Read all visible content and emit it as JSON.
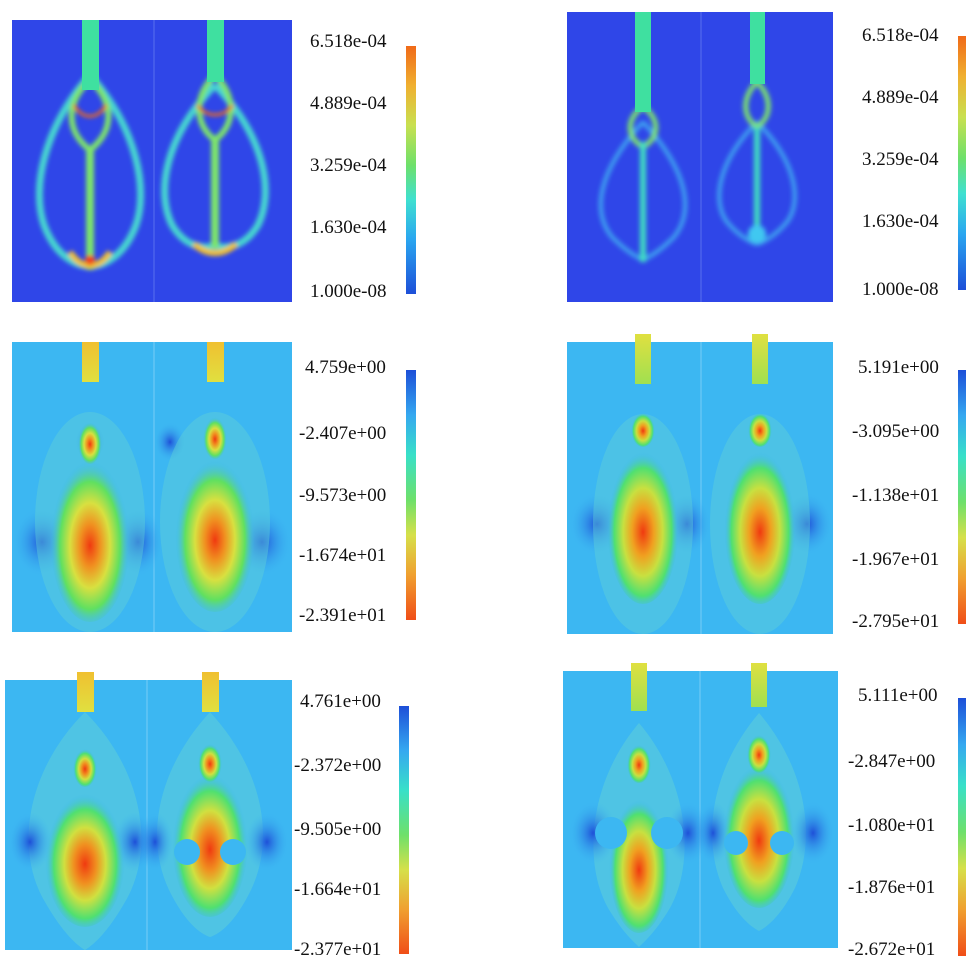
{
  "palettes": {
    "blue_base": "#2f46e8",
    "cyan_base": "#3cb7f2",
    "concentration_bar": [
      "#1d4fd8",
      "#2aa6f0",
      "#3fe0d0",
      "#6ee06a",
      "#c8e050",
      "#f0b030",
      "#f06a18"
    ],
    "potential_bar": [
      "#1d4fd8",
      "#35a8f0",
      "#38e0c8",
      "#6ee06a",
      "#d6e04a",
      "#f0a030",
      "#f04e18"
    ]
  },
  "panels": [
    {
      "id": "a",
      "colorbar": [
        "6.518e-04",
        "4.889e-04",
        "3.259e-04",
        "1.630e-04",
        "1.000e-08"
      ]
    },
    {
      "id": "b",
      "colorbar": [
        "6.518e-04",
        "4.889e-04",
        "3.259e-04",
        "1.630e-04",
        "1.000e-08"
      ]
    },
    {
      "id": "c",
      "colorbar": [
        "4.759e+00",
        "-2.407e+00",
        "-9.573e+00",
        "-1.674e+01",
        "-2.391e+01"
      ]
    },
    {
      "id": "d",
      "colorbar": [
        "5.191e+00",
        "-3.095e+00",
        "-1.138e+01",
        "-1.967e+01",
        "-2.795e+01"
      ]
    },
    {
      "id": "e",
      "colorbar": [
        "4.761e+00",
        "-2.372e+00",
        "-9.505e+00",
        "-1.664e+01",
        "-2.377e+01"
      ]
    },
    {
      "id": "f",
      "colorbar": [
        "5.111e+00",
        "-2.847e+00",
        "-1.080e+01",
        "-1.876e+01",
        "-2.672e+01"
      ]
    }
  ]
}
